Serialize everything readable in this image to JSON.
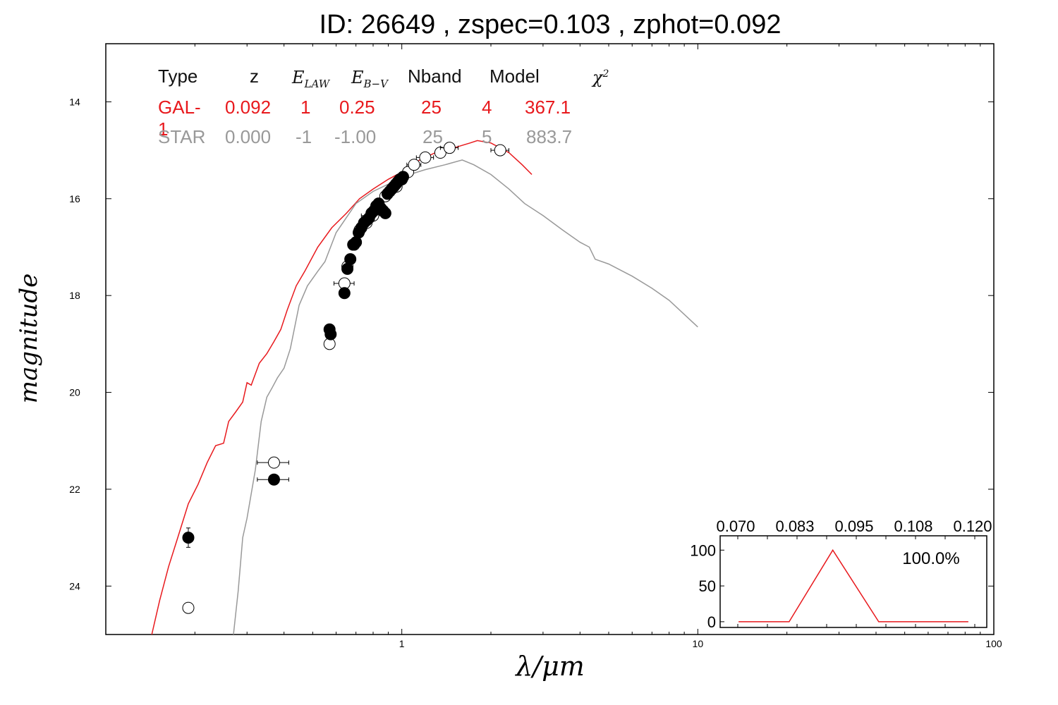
{
  "title": "ID:  26649 , zspec=0.103 , zphot=0.092",
  "colors": {
    "galaxy": "#e8191d",
    "star": "#999999",
    "points": "#000000"
  },
  "legend_table": {
    "headers": [
      "Type",
      "z",
      "E_LAW",
      "E_B-V",
      "Nband",
      "Model",
      "χ²"
    ],
    "rows": [
      {
        "name": "galaxy",
        "cells": [
          "GAL-1",
          "0.092",
          "1",
          "0.25",
          "25",
          "4",
          "367.1"
        ]
      },
      {
        "name": "star",
        "cells": [
          "STAR",
          "0.000",
          "-1",
          "-1.00",
          "25",
          "5",
          "883.7"
        ]
      }
    ]
  },
  "chart_data": [
    {
      "type": "line",
      "xlabel": "λ/μm",
      "ylabel": "magnitude",
      "xscale": "log",
      "xlim": [
        0.1,
        100
      ],
      "ylim": [
        25,
        12.8
      ],
      "y_inverted": true,
      "xticks": [
        1,
        10,
        100
      ],
      "xtick_labels": [
        "1",
        "10",
        "100"
      ],
      "yticks": [
        14,
        16,
        18,
        20,
        22,
        24
      ],
      "ytick_labels": [
        "14",
        "16",
        "18",
        "20",
        "22",
        "24"
      ],
      "series": [
        {
          "name": "GAL-1",
          "color": "#e8191d",
          "x": [
            0.143,
            0.152,
            0.163,
            0.175,
            0.19,
            0.205,
            0.22,
            0.235,
            0.25,
            0.26,
            0.275,
            0.29,
            0.3,
            0.31,
            0.33,
            0.35,
            0.37,
            0.39,
            0.41,
            0.44,
            0.47,
            0.52,
            0.58,
            0.65,
            0.72,
            0.8,
            0.9,
            1.0,
            1.15,
            1.3,
            1.5,
            1.7,
            1.8,
            2.0,
            2.3,
            2.55,
            2.75
          ],
          "y": [
            25.0,
            24.3,
            23.6,
            23.0,
            22.3,
            21.9,
            21.45,
            21.1,
            21.05,
            20.6,
            20.4,
            20.2,
            19.8,
            19.85,
            19.4,
            19.2,
            18.95,
            18.7,
            18.3,
            17.8,
            17.5,
            17.0,
            16.6,
            16.3,
            16.0,
            15.8,
            15.6,
            15.45,
            15.2,
            15.05,
            14.95,
            14.85,
            14.8,
            14.85,
            15.05,
            15.3,
            15.5
          ]
        },
        {
          "name": "STAR",
          "color": "#999999",
          "x": [
            0.27,
            0.28,
            0.29,
            0.3,
            0.32,
            0.335,
            0.35,
            0.365,
            0.38,
            0.4,
            0.42,
            0.45,
            0.48,
            0.52,
            0.55,
            0.6,
            0.7,
            0.8,
            0.9,
            1.0,
            1.2,
            1.4,
            1.6,
            1.75,
            2.0,
            2.3,
            2.6,
            3.0,
            3.5,
            4.0,
            4.3,
            4.5,
            5.0,
            6.0,
            7.0,
            8.0,
            10.0
          ],
          "y": [
            25.0,
            24.1,
            23.0,
            22.6,
            21.6,
            20.6,
            20.1,
            19.9,
            19.7,
            19.5,
            19.1,
            18.2,
            17.8,
            17.5,
            17.3,
            16.7,
            16.1,
            15.85,
            15.7,
            15.55,
            15.4,
            15.3,
            15.2,
            15.3,
            15.5,
            15.8,
            16.1,
            16.35,
            16.65,
            16.9,
            17.0,
            17.25,
            17.35,
            17.6,
            17.85,
            18.1,
            18.65
          ]
        }
      ],
      "points_filled": [
        {
          "x": 0.19,
          "y": 23.0,
          "xerr": 0.006,
          "yerr": 0.2
        },
        {
          "x": 0.37,
          "y": 21.8,
          "xerr": 0.045,
          "yerr": 0.1
        },
        {
          "x": 0.57,
          "y": 18.7,
          "xerr": 0.008,
          "yerr": 0.1
        },
        {
          "x": 0.575,
          "y": 18.8,
          "xerr": 0.008,
          "yerr": 0.1
        },
        {
          "x": 0.64,
          "y": 17.95,
          "xerr": 0.0,
          "yerr": 0.05
        },
        {
          "x": 0.655,
          "y": 17.45,
          "xerr": 0.0,
          "yerr": 0.0
        },
        {
          "x": 0.67,
          "y": 17.25,
          "xerr": 0.0,
          "yerr": 0.0
        },
        {
          "x": 0.685,
          "y": 16.95,
          "xerr": 0.0,
          "yerr": 0.0
        },
        {
          "x": 0.7,
          "y": 16.9,
          "xerr": 0.0,
          "yerr": 0.0
        },
        {
          "x": 0.715,
          "y": 16.7,
          "xerr": 0.0,
          "yerr": 0.0
        },
        {
          "x": 0.73,
          "y": 16.6,
          "xerr": 0.0,
          "yerr": 0.0
        },
        {
          "x": 0.745,
          "y": 16.5,
          "xerr": 0.0,
          "yerr": 0.0
        },
        {
          "x": 0.76,
          "y": 16.45,
          "xerr": 0.0,
          "yerr": 0.0
        },
        {
          "x": 0.775,
          "y": 16.4,
          "xerr": 0.0,
          "yerr": 0.0
        },
        {
          "x": 0.79,
          "y": 16.3,
          "xerr": 0.0,
          "yerr": 0.0
        },
        {
          "x": 0.805,
          "y": 16.25,
          "xerr": 0.0,
          "yerr": 0.0
        },
        {
          "x": 0.82,
          "y": 16.15,
          "xerr": 0.0,
          "yerr": 0.0
        },
        {
          "x": 0.835,
          "y": 16.1,
          "xerr": 0.0,
          "yerr": 0.0
        },
        {
          "x": 0.85,
          "y": 16.2,
          "xerr": 0.0,
          "yerr": 0.0
        },
        {
          "x": 0.865,
          "y": 16.25,
          "xerr": 0.0,
          "yerr": 0.0
        },
        {
          "x": 0.88,
          "y": 16.3,
          "xerr": 0.0,
          "yerr": 0.0
        },
        {
          "x": 0.895,
          "y": 15.9,
          "xerr": 0.0,
          "yerr": 0.0
        },
        {
          "x": 0.91,
          "y": 15.85,
          "xerr": 0.0,
          "yerr": 0.0
        },
        {
          "x": 0.925,
          "y": 15.8,
          "xerr": 0.0,
          "yerr": 0.0
        },
        {
          "x": 0.94,
          "y": 15.75,
          "xerr": 0.0,
          "yerr": 0.0
        },
        {
          "x": 0.955,
          "y": 15.7,
          "xerr": 0.0,
          "yerr": 0.0
        },
        {
          "x": 0.97,
          "y": 15.65,
          "xerr": 0.0,
          "yerr": 0.0
        },
        {
          "x": 0.985,
          "y": 15.6,
          "xerr": 0.0,
          "yerr": 0.0
        },
        {
          "x": 1.0,
          "y": 15.6,
          "xerr": 0.0,
          "yerr": 0.0
        },
        {
          "x": 1.01,
          "y": 15.55,
          "xerr": 0.0,
          "yerr": 0.0
        }
      ],
      "points_open": [
        {
          "x": 0.19,
          "y": 24.45,
          "xerr": 0.006,
          "yerr": 0.0
        },
        {
          "x": 0.37,
          "y": 21.45,
          "xerr": 0.045,
          "yerr": 0.0
        },
        {
          "x": 0.57,
          "y": 19.0,
          "xerr": 0.0,
          "yerr": 0.0
        },
        {
          "x": 0.64,
          "y": 17.75,
          "xerr": 0.05,
          "yerr": 0.0
        },
        {
          "x": 0.655,
          "y": 17.4,
          "xerr": 0.0,
          "yerr": 0.0
        },
        {
          "x": 0.69,
          "y": 16.95,
          "xerr": 0.0,
          "yerr": 0.0
        },
        {
          "x": 0.72,
          "y": 16.65,
          "xerr": 0.0,
          "yerr": 0.0
        },
        {
          "x": 0.76,
          "y": 16.5,
          "xerr": 0.0,
          "yerr": 0.0
        },
        {
          "x": 0.8,
          "y": 16.35,
          "xerr": 0.07,
          "yerr": 0.0
        },
        {
          "x": 0.83,
          "y": 16.2,
          "xerr": 0.0,
          "yerr": 0.0
        },
        {
          "x": 0.88,
          "y": 15.95,
          "xerr": 0.0,
          "yerr": 0.0
        },
        {
          "x": 0.96,
          "y": 15.75,
          "xerr": 0.0,
          "yerr": 0.0
        },
        {
          "x": 1.0,
          "y": 15.6,
          "xerr": 0.0,
          "yerr": 0.0
        },
        {
          "x": 1.05,
          "y": 15.45,
          "xerr": 0.0,
          "yerr": 0.0
        },
        {
          "x": 1.1,
          "y": 15.3,
          "xerr": 0.06,
          "yerr": 0.0
        },
        {
          "x": 1.2,
          "y": 15.15,
          "xerr": 0.08,
          "yerr": 0.0
        },
        {
          "x": 1.35,
          "y": 15.05,
          "xerr": 0.0,
          "yerr": 0.0
        },
        {
          "x": 1.45,
          "y": 14.95,
          "xerr": 0.1,
          "yerr": 0.0
        },
        {
          "x": 2.15,
          "y": 15.0,
          "xerr": 0.15,
          "yerr": 0.0
        }
      ]
    },
    {
      "type": "line",
      "role": "inset",
      "xlim": [
        0.064,
        0.122
      ],
      "ylim": [
        -8,
        120
      ],
      "xticks": [
        0.07,
        0.083,
        0.095,
        0.108,
        0.12
      ],
      "xtick_labels": [
        "0.070",
        "0.083",
        "0.095",
        "0.108",
        "0.120"
      ],
      "yticks": [
        0,
        50,
        100
      ],
      "ytick_labels": [
        "0",
        "50",
        "100"
      ],
      "annotation": "100.0%",
      "series": [
        {
          "color": "#e8191d",
          "x": [
            0.068,
            0.079,
            0.0885,
            0.0985,
            0.118
          ],
          "y": [
            0,
            0,
            100,
            0,
            0
          ]
        }
      ]
    }
  ]
}
